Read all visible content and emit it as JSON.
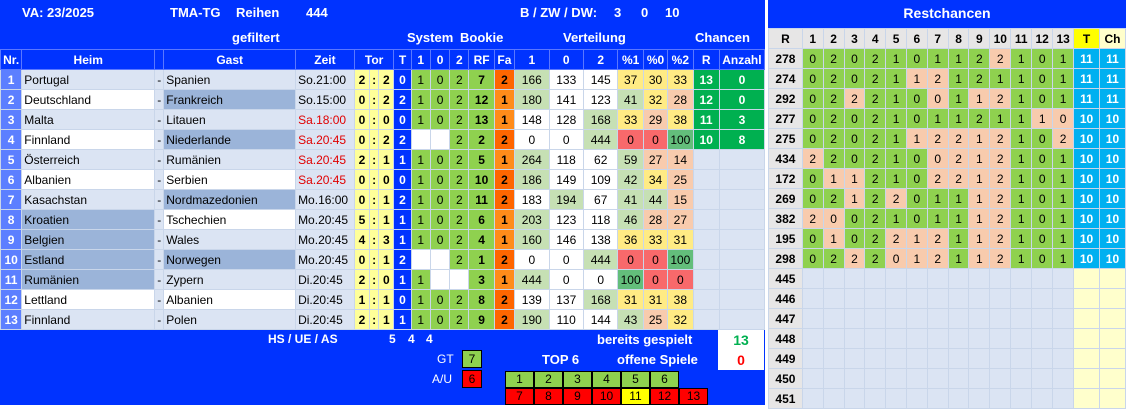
{
  "header": {
    "va": "VA: 23/2025",
    "tma": "TMA-TG",
    "reihen": "Reihen",
    "reihen_count": "444",
    "bzwdw": "B / ZW / DW:",
    "b": "3",
    "zw": "0",
    "dw": "10",
    "gefiltert": "gefiltert",
    "system": "System",
    "bookie": "Bookie",
    "verteilung": "Verteilung",
    "chancen": "Chancen",
    "restchancen": "Restchancen"
  },
  "columns": {
    "nr": "Nr.",
    "heim": "Heim",
    "gast": "Gast",
    "zeit": "Zeit",
    "tor": "Tor",
    "t": "T",
    "s1": "1",
    "s0": "0",
    "s2": "2",
    "rf": "RF",
    "fa": "Fa",
    "v1": "1",
    "v0": "0",
    "v2": "2",
    "p1": "%1",
    "p0": "%0",
    "p2": "%2",
    "r": "R",
    "anzahl": "Anzahl"
  },
  "matches": [
    {
      "nr": "1",
      "heim": "Portugal",
      "dash": "-",
      "gast": "Spanien",
      "zeit": "So.21:00",
      "red": false,
      "h": "2",
      "c": ":",
      "a": "2",
      "t": "0",
      "s1": "1",
      "s0": "0",
      "s2": "2",
      "rf": "7",
      "fa": "2",
      "v1": "166",
      "v0": "133",
      "v2": "145",
      "p1": "37",
      "p0": "30",
      "p2": "33",
      "r": "13",
      "anz": "0"
    },
    {
      "nr": "2",
      "heim": "Deutschland",
      "dash": "-",
      "gast": "Frankreich",
      "zeit": "So.15:00",
      "red": false,
      "h": "0",
      "c": ":",
      "a": "2",
      "t": "2",
      "s1": "1",
      "s0": "0",
      "s2": "2",
      "rf": "12",
      "fa": "1",
      "v1": "180",
      "v0": "141",
      "v2": "123",
      "p1": "41",
      "p0": "32",
      "p2": "28",
      "r": "12",
      "anz": "0"
    },
    {
      "nr": "3",
      "heim": "Malta",
      "dash": "-",
      "gast": "Litauen",
      "zeit": "Sa.18:00",
      "red": true,
      "h": "0",
      "c": ":",
      "a": "0",
      "t": "0",
      "s1": "1",
      "s0": "0",
      "s2": "2",
      "rf": "13",
      "fa": "1",
      "v1": "148",
      "v0": "128",
      "v2": "168",
      "p1": "33",
      "p0": "29",
      "p2": "38",
      "r": "11",
      "anz": "3"
    },
    {
      "nr": "4",
      "heim": "Finnland",
      "dash": "-",
      "gast": "Niederlande",
      "zeit": "Sa.20:45",
      "red": true,
      "h": "0",
      "c": ":",
      "a": "2",
      "t": "2",
      "s1": "",
      "s0": "",
      "s2": "2",
      "rf": "2",
      "fa": "2",
      "v1": "0",
      "v0": "0",
      "v2": "444",
      "p1": "0",
      "p0": "0",
      "p2": "100",
      "r": "10",
      "anz": "8"
    },
    {
      "nr": "5",
      "heim": "Österreich",
      "dash": "-",
      "gast": "Rumänien",
      "zeit": "Sa.20:45",
      "red": true,
      "h": "2",
      "c": ":",
      "a": "1",
      "t": "1",
      "s1": "1",
      "s0": "0",
      "s2": "2",
      "rf": "5",
      "fa": "1",
      "v1": "264",
      "v0": "118",
      "v2": "62",
      "p1": "59",
      "p0": "27",
      "p2": "14",
      "r": "",
      "anz": ""
    },
    {
      "nr": "6",
      "heim": "Albanien",
      "dash": "-",
      "gast": "Serbien",
      "zeit": "Sa.20:45",
      "red": true,
      "h": "0",
      "c": ":",
      "a": "0",
      "t": "0",
      "s1": "1",
      "s0": "0",
      "s2": "2",
      "rf": "10",
      "fa": "2",
      "v1": "186",
      "v0": "149",
      "v2": "109",
      "p1": "42",
      "p0": "34",
      "p2": "25",
      "r": "",
      "anz": ""
    },
    {
      "nr": "7",
      "heim": "Kasachstan",
      "dash": "-",
      "gast": "Nordmazedonien",
      "zeit": "Mo.16:00",
      "red": false,
      "h": "0",
      "c": ":",
      "a": "1",
      "t": "2",
      "s1": "1",
      "s0": "0",
      "s2": "2",
      "rf": "11",
      "fa": "2",
      "v1": "183",
      "v0": "194",
      "v2": "67",
      "p1": "41",
      "p0": "44",
      "p2": "15",
      "r": "",
      "anz": ""
    },
    {
      "nr": "8",
      "heim": "Kroatien",
      "dash": "-",
      "gast": "Tschechien",
      "zeit": "Mo.20:45",
      "red": false,
      "h": "5",
      "c": ":",
      "a": "1",
      "t": "1",
      "s1": "1",
      "s0": "0",
      "s2": "2",
      "rf": "6",
      "fa": "1",
      "v1": "203",
      "v0": "123",
      "v2": "118",
      "p1": "46",
      "p0": "28",
      "p2": "27",
      "r": "",
      "anz": ""
    },
    {
      "nr": "9",
      "heim": "Belgien",
      "dash": "-",
      "gast": "Wales",
      "zeit": "Mo.20:45",
      "red": false,
      "h": "4",
      "c": ":",
      "a": "3",
      "t": "1",
      "s1": "1",
      "s0": "0",
      "s2": "2",
      "rf": "4",
      "fa": "1",
      "v1": "160",
      "v0": "146",
      "v2": "138",
      "p1": "36",
      "p0": "33",
      "p2": "31",
      "r": "",
      "anz": ""
    },
    {
      "nr": "10",
      "heim": "Estland",
      "dash": "-",
      "gast": "Norwegen",
      "zeit": "Mo.20:45",
      "red": false,
      "h": "0",
      "c": ":",
      "a": "1",
      "t": "2",
      "s1": "",
      "s0": "",
      "s2": "2",
      "rf": "1",
      "fa": "2",
      "v1": "0",
      "v0": "0",
      "v2": "444",
      "p1": "0",
      "p0": "0",
      "p2": "100",
      "r": "",
      "anz": ""
    },
    {
      "nr": "11",
      "heim": "Rumänien",
      "dash": "-",
      "gast": "Zypern",
      "zeit": "Di.20:45",
      "red": false,
      "h": "2",
      "c": ":",
      "a": "0",
      "t": "1",
      "s1": "1",
      "s0": "",
      "s2": "",
      "rf": "3",
      "fa": "1",
      "v1": "444",
      "v0": "0",
      "v2": "0",
      "p1": "100",
      "p0": "0",
      "p2": "0",
      "r": "",
      "anz": ""
    },
    {
      "nr": "12",
      "heim": "Lettland",
      "dash": "-",
      "gast": "Albanien",
      "zeit": "Di.20:45",
      "red": false,
      "h": "1",
      "c": ":",
      "a": "1",
      "t": "0",
      "s1": "1",
      "s0": "0",
      "s2": "2",
      "rf": "8",
      "fa": "2",
      "v1": "139",
      "v0": "137",
      "v2": "168",
      "p1": "31",
      "p0": "31",
      "p2": "38",
      "r": "",
      "anz": ""
    },
    {
      "nr": "13",
      "heim": "Finnland",
      "dash": "-",
      "gast": "Polen",
      "zeit": "Di.20:45",
      "red": false,
      "h": "2",
      "c": ":",
      "a": "1",
      "t": "1",
      "s1": "1",
      "s0": "0",
      "s2": "2",
      "rf": "9",
      "fa": "2",
      "v1": "190",
      "v0": "110",
      "v2": "144",
      "p1": "43",
      "p0": "25",
      "p2": "32",
      "r": "",
      "anz": ""
    }
  ],
  "footer": {
    "hsueas": "HS / UE / AS",
    "hs": "5",
    "ue": "4",
    "as": "4",
    "bereits": "bereits gespielt",
    "bereits_val": "13",
    "offene": "offene Spiele",
    "offene_val": "0",
    "gt": "GT",
    "gt_val": "7",
    "au": "A/U",
    "au_val": "6",
    "top6": "TOP 6",
    "top_row1": [
      "1",
      "2",
      "3",
      "4",
      "5",
      "6"
    ],
    "top_row2": [
      "7",
      "8",
      "9",
      "10",
      "11",
      "12",
      "13"
    ]
  },
  "rest": {
    "head": [
      "R",
      "1",
      "2",
      "3",
      "4",
      "5",
      "6",
      "7",
      "8",
      "9",
      "10",
      "11",
      "12",
      "13",
      "T",
      "Ch"
    ],
    "rows": [
      {
        "r": "278",
        "v": [
          "0",
          "2",
          "0",
          "2",
          "1",
          "0",
          "1",
          "1",
          "2",
          "2",
          "1",
          "0",
          "1"
        ],
        "t": "11",
        "ch": "11"
      },
      {
        "r": "274",
        "v": [
          "0",
          "2",
          "0",
          "2",
          "1",
          "1",
          "2",
          "1",
          "2",
          "1",
          "1",
          "0",
          "1"
        ],
        "t": "11",
        "ch": "11"
      },
      {
        "r": "292",
        "v": [
          "0",
          "2",
          "2",
          "2",
          "1",
          "0",
          "0",
          "1",
          "1",
          "2",
          "1",
          "0",
          "1"
        ],
        "t": "11",
        "ch": "11"
      },
      {
        "r": "277",
        "v": [
          "0",
          "2",
          "0",
          "2",
          "1",
          "0",
          "1",
          "1",
          "2",
          "1",
          "1",
          "1",
          "0"
        ],
        "t": "10",
        "ch": "10"
      },
      {
        "r": "275",
        "v": [
          "0",
          "2",
          "0",
          "2",
          "1",
          "1",
          "2",
          "2",
          "1",
          "2",
          "1",
          "0",
          "2"
        ],
        "t": "10",
        "ch": "10"
      },
      {
        "r": "434",
        "v": [
          "2",
          "2",
          "0",
          "2",
          "1",
          "0",
          "0",
          "2",
          "1",
          "2",
          "1",
          "0",
          "1"
        ],
        "t": "10",
        "ch": "10"
      },
      {
        "r": "172",
        "v": [
          "0",
          "1",
          "1",
          "2",
          "1",
          "0",
          "2",
          "2",
          "1",
          "2",
          "1",
          "0",
          "1"
        ],
        "t": "10",
        "ch": "10"
      },
      {
        "r": "269",
        "v": [
          "0",
          "2",
          "1",
          "2",
          "2",
          "0",
          "1",
          "1",
          "1",
          "2",
          "1",
          "0",
          "1"
        ],
        "t": "10",
        "ch": "10"
      },
      {
        "r": "382",
        "v": [
          "2",
          "0",
          "0",
          "2",
          "1",
          "0",
          "1",
          "1",
          "1",
          "2",
          "1",
          "0",
          "1"
        ],
        "t": "10",
        "ch": "10"
      },
      {
        "r": "195",
        "v": [
          "0",
          "1",
          "0",
          "2",
          "2",
          "1",
          "2",
          "1",
          "1",
          "2",
          "1",
          "0",
          "1"
        ],
        "t": "10",
        "ch": "10"
      },
      {
        "r": "298",
        "v": [
          "0",
          "2",
          "2",
          "2",
          "0",
          "1",
          "2",
          "1",
          "1",
          "2",
          "1",
          "0",
          "1"
        ],
        "t": "10",
        "ch": "10"
      },
      {
        "r": "445"
      },
      {
        "r": "446"
      },
      {
        "r": "447"
      },
      {
        "r": "448"
      },
      {
        "r": "449"
      },
      {
        "r": "450"
      },
      {
        "r": "451"
      }
    ]
  }
}
